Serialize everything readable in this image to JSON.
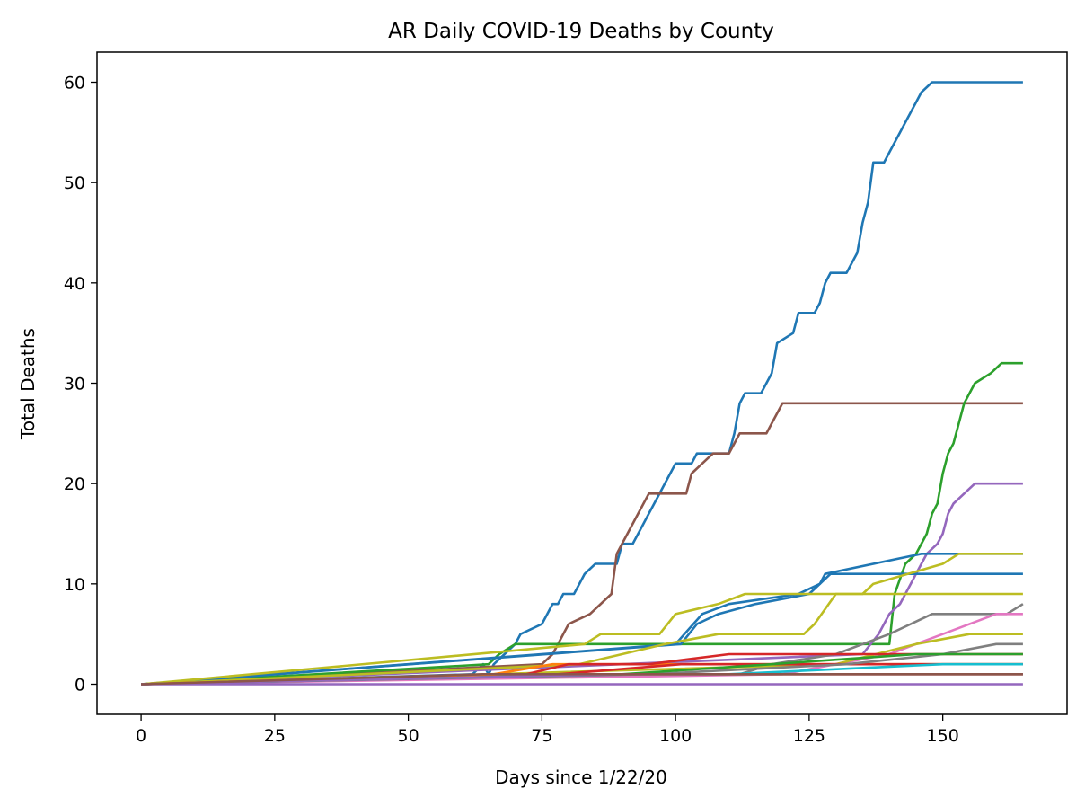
{
  "chart_data": {
    "type": "line",
    "title": "AR Daily COVID-19 Deaths by County",
    "xlabel": "Days since 1/22/20",
    "ylabel": "Total Deaths",
    "xlim": [
      -8.25,
      173.25
    ],
    "ylim": [
      -3,
      63
    ],
    "xticks": [
      0,
      25,
      50,
      75,
      100,
      125,
      150
    ],
    "yticks": [
      0,
      10,
      20,
      30,
      40,
      50,
      60
    ],
    "grid": false,
    "legend": "none",
    "series": [
      {
        "color": "#1f77b4",
        "steps": [
          [
            0,
            0
          ],
          [
            62,
            1
          ],
          [
            64,
            2
          ],
          [
            65,
            1
          ],
          [
            66,
            2
          ],
          [
            68,
            3
          ],
          [
            70,
            4
          ],
          [
            71,
            5
          ],
          [
            75,
            6
          ],
          [
            76,
            7
          ],
          [
            77,
            8
          ],
          [
            78,
            8
          ],
          [
            79,
            9
          ],
          [
            81,
            9
          ],
          [
            82,
            10
          ],
          [
            83,
            11
          ],
          [
            85,
            12
          ],
          [
            89,
            12
          ],
          [
            90,
            14
          ],
          [
            92,
            14
          ],
          [
            93,
            15
          ],
          [
            94,
            16
          ],
          [
            95,
            17
          ],
          [
            96,
            18
          ],
          [
            97,
            19
          ],
          [
            98,
            20
          ],
          [
            99,
            21
          ],
          [
            100,
            22
          ],
          [
            103,
            22
          ],
          [
            104,
            23
          ],
          [
            110,
            23
          ],
          [
            111,
            25
          ],
          [
            112,
            28
          ],
          [
            113,
            29
          ],
          [
            116,
            29
          ],
          [
            117,
            30
          ],
          [
            118,
            31
          ],
          [
            119,
            34
          ],
          [
            122,
            35
          ],
          [
            123,
            37
          ],
          [
            126,
            37
          ],
          [
            127,
            38
          ],
          [
            128,
            40
          ],
          [
            129,
            41
          ],
          [
            132,
            41
          ],
          [
            133,
            42
          ],
          [
            134,
            43
          ],
          [
            135,
            46
          ],
          [
            136,
            48
          ],
          [
            137,
            52
          ],
          [
            139,
            52
          ],
          [
            140,
            53
          ],
          [
            142,
            55
          ],
          [
            143,
            56
          ],
          [
            145,
            58
          ],
          [
            146,
            59
          ],
          [
            148,
            60
          ],
          [
            165,
            60
          ]
        ]
      },
      {
        "color": "#8c564b",
        "steps": [
          [
            0,
            0
          ],
          [
            75,
            2
          ],
          [
            77,
            3
          ],
          [
            78,
            4
          ],
          [
            79,
            5
          ],
          [
            80,
            6
          ],
          [
            84,
            7
          ],
          [
            88,
            9
          ],
          [
            89,
            13
          ],
          [
            90,
            14
          ],
          [
            91,
            15
          ],
          [
            93,
            17
          ],
          [
            95,
            19
          ],
          [
            102,
            19
          ],
          [
            103,
            21
          ],
          [
            105,
            22
          ],
          [
            107,
            23
          ],
          [
            110,
            23
          ],
          [
            112,
            25
          ],
          [
            117,
            25
          ],
          [
            118,
            26
          ],
          [
            120,
            28
          ],
          [
            165,
            28
          ]
        ]
      },
      {
        "color": "#2ca02c",
        "steps": [
          [
            0,
            0
          ],
          [
            65,
            2
          ],
          [
            67,
            3
          ],
          [
            70,
            4
          ],
          [
            140,
            4
          ],
          [
            141,
            9
          ],
          [
            143,
            12
          ],
          [
            145,
            13
          ],
          [
            147,
            15
          ],
          [
            148,
            17
          ],
          [
            149,
            18
          ],
          [
            150,
            21
          ],
          [
            151,
            23
          ],
          [
            152,
            24
          ],
          [
            154,
            28
          ],
          [
            156,
            30
          ],
          [
            159,
            31
          ],
          [
            161,
            32
          ],
          [
            165,
            32
          ]
        ]
      },
      {
        "color": "#9467bd",
        "steps": [
          [
            0,
            0
          ],
          [
            135,
            3
          ],
          [
            138,
            5
          ],
          [
            140,
            7
          ],
          [
            142,
            8
          ],
          [
            144,
            10
          ],
          [
            146,
            12
          ],
          [
            147,
            13
          ],
          [
            149,
            14
          ],
          [
            150,
            15
          ],
          [
            151,
            17
          ],
          [
            152,
            18
          ],
          [
            154,
            19
          ],
          [
            156,
            20
          ],
          [
            165,
            20
          ]
        ]
      },
      {
        "color": "#1f77b4",
        "steps": [
          [
            0,
            0
          ],
          [
            100,
            4
          ],
          [
            105,
            7
          ],
          [
            110,
            8
          ],
          [
            123,
            9
          ],
          [
            127,
            10
          ],
          [
            128,
            11
          ],
          [
            146,
            13
          ],
          [
            165,
            13
          ]
        ]
      },
      {
        "color": "#1f77b4",
        "steps": [
          [
            0,
            0
          ],
          [
            101,
            4
          ],
          [
            104,
            6
          ],
          [
            108,
            7
          ],
          [
            115,
            8
          ],
          [
            125,
            9
          ],
          [
            129,
            11
          ],
          [
            165,
            11
          ]
        ]
      },
      {
        "color": "#bcbd22",
        "steps": [
          [
            0,
            0
          ],
          [
            83,
            4
          ],
          [
            86,
            5
          ],
          [
            97,
            5
          ],
          [
            100,
            7
          ],
          [
            108,
            8
          ],
          [
            113,
            9
          ],
          [
            135,
            9
          ],
          [
            137,
            10
          ],
          [
            150,
            12
          ],
          [
            153,
            13
          ],
          [
            165,
            13
          ]
        ]
      },
      {
        "color": "#bcbd22",
        "steps": [
          [
            0,
            0
          ],
          [
            82,
            2
          ],
          [
            98,
            4
          ],
          [
            108,
            5
          ],
          [
            124,
            5
          ],
          [
            126,
            6
          ],
          [
            130,
            9
          ],
          [
            165,
            9
          ]
        ]
      },
      {
        "color": "#7f7f7f",
        "steps": [
          [
            0,
            0
          ],
          [
            100,
            1
          ],
          [
            112,
            1
          ],
          [
            118,
            2
          ],
          [
            130,
            3
          ],
          [
            140,
            5
          ],
          [
            144,
            6
          ],
          [
            148,
            7
          ],
          [
            162,
            7
          ],
          [
            165,
            8
          ]
        ]
      },
      {
        "color": "#e377c2",
        "steps": [
          [
            0,
            0
          ],
          [
            120,
            1
          ],
          [
            140,
            3
          ],
          [
            150,
            5
          ],
          [
            160,
            7
          ],
          [
            165,
            7
          ]
        ]
      },
      {
        "color": "#bcbd22",
        "steps": [
          [
            0,
            0
          ],
          [
            130,
            2
          ],
          [
            145,
            4
          ],
          [
            155,
            5
          ],
          [
            165,
            5
          ]
        ]
      },
      {
        "color": "#ff7f0e",
        "steps": [
          [
            0,
            0
          ],
          [
            66,
            1
          ],
          [
            77,
            2
          ],
          [
            83,
            2
          ],
          [
            90,
            2
          ],
          [
            165,
            2
          ]
        ]
      },
      {
        "color": "#d62728",
        "steps": [
          [
            0,
            0
          ],
          [
            72,
            1
          ],
          [
            80,
            2
          ],
          [
            95,
            2
          ],
          [
            110,
            3
          ],
          [
            165,
            3
          ]
        ]
      },
      {
        "color": "#d62728",
        "steps": [
          [
            0,
            0
          ],
          [
            78,
            1
          ],
          [
            101,
            2
          ],
          [
            165,
            2
          ]
        ]
      },
      {
        "color": "#7f7f7f",
        "steps": [
          [
            0,
            0
          ],
          [
            95,
            1
          ],
          [
            132,
            2
          ],
          [
            150,
            3
          ],
          [
            160,
            4
          ],
          [
            165,
            4
          ]
        ]
      },
      {
        "color": "#17becf",
        "steps": [
          [
            0,
            0
          ],
          [
            80,
            1
          ],
          [
            110,
            1
          ],
          [
            150,
            2
          ],
          [
            165,
            2
          ]
        ]
      },
      {
        "color": "#ff7f0e",
        "steps": [
          [
            0,
            0
          ],
          [
            68,
            1
          ],
          [
            165,
            1
          ]
        ]
      },
      {
        "color": "#2ca02c",
        "steps": [
          [
            0,
            0
          ],
          [
            90,
            1
          ],
          [
            118,
            2
          ],
          [
            145,
            3
          ],
          [
            165,
            3
          ]
        ]
      },
      {
        "color": "#9467bd",
        "steps": [
          [
            0,
            0
          ],
          [
            90,
            1
          ],
          [
            165,
            1
          ]
        ]
      },
      {
        "color": "#9467bd",
        "steps": [
          [
            0,
            0
          ],
          [
            165,
            0
          ]
        ]
      },
      {
        "color": "#8c564b",
        "steps": [
          [
            0,
            0
          ],
          [
            64,
            1
          ],
          [
            165,
            1
          ]
        ]
      }
    ]
  }
}
